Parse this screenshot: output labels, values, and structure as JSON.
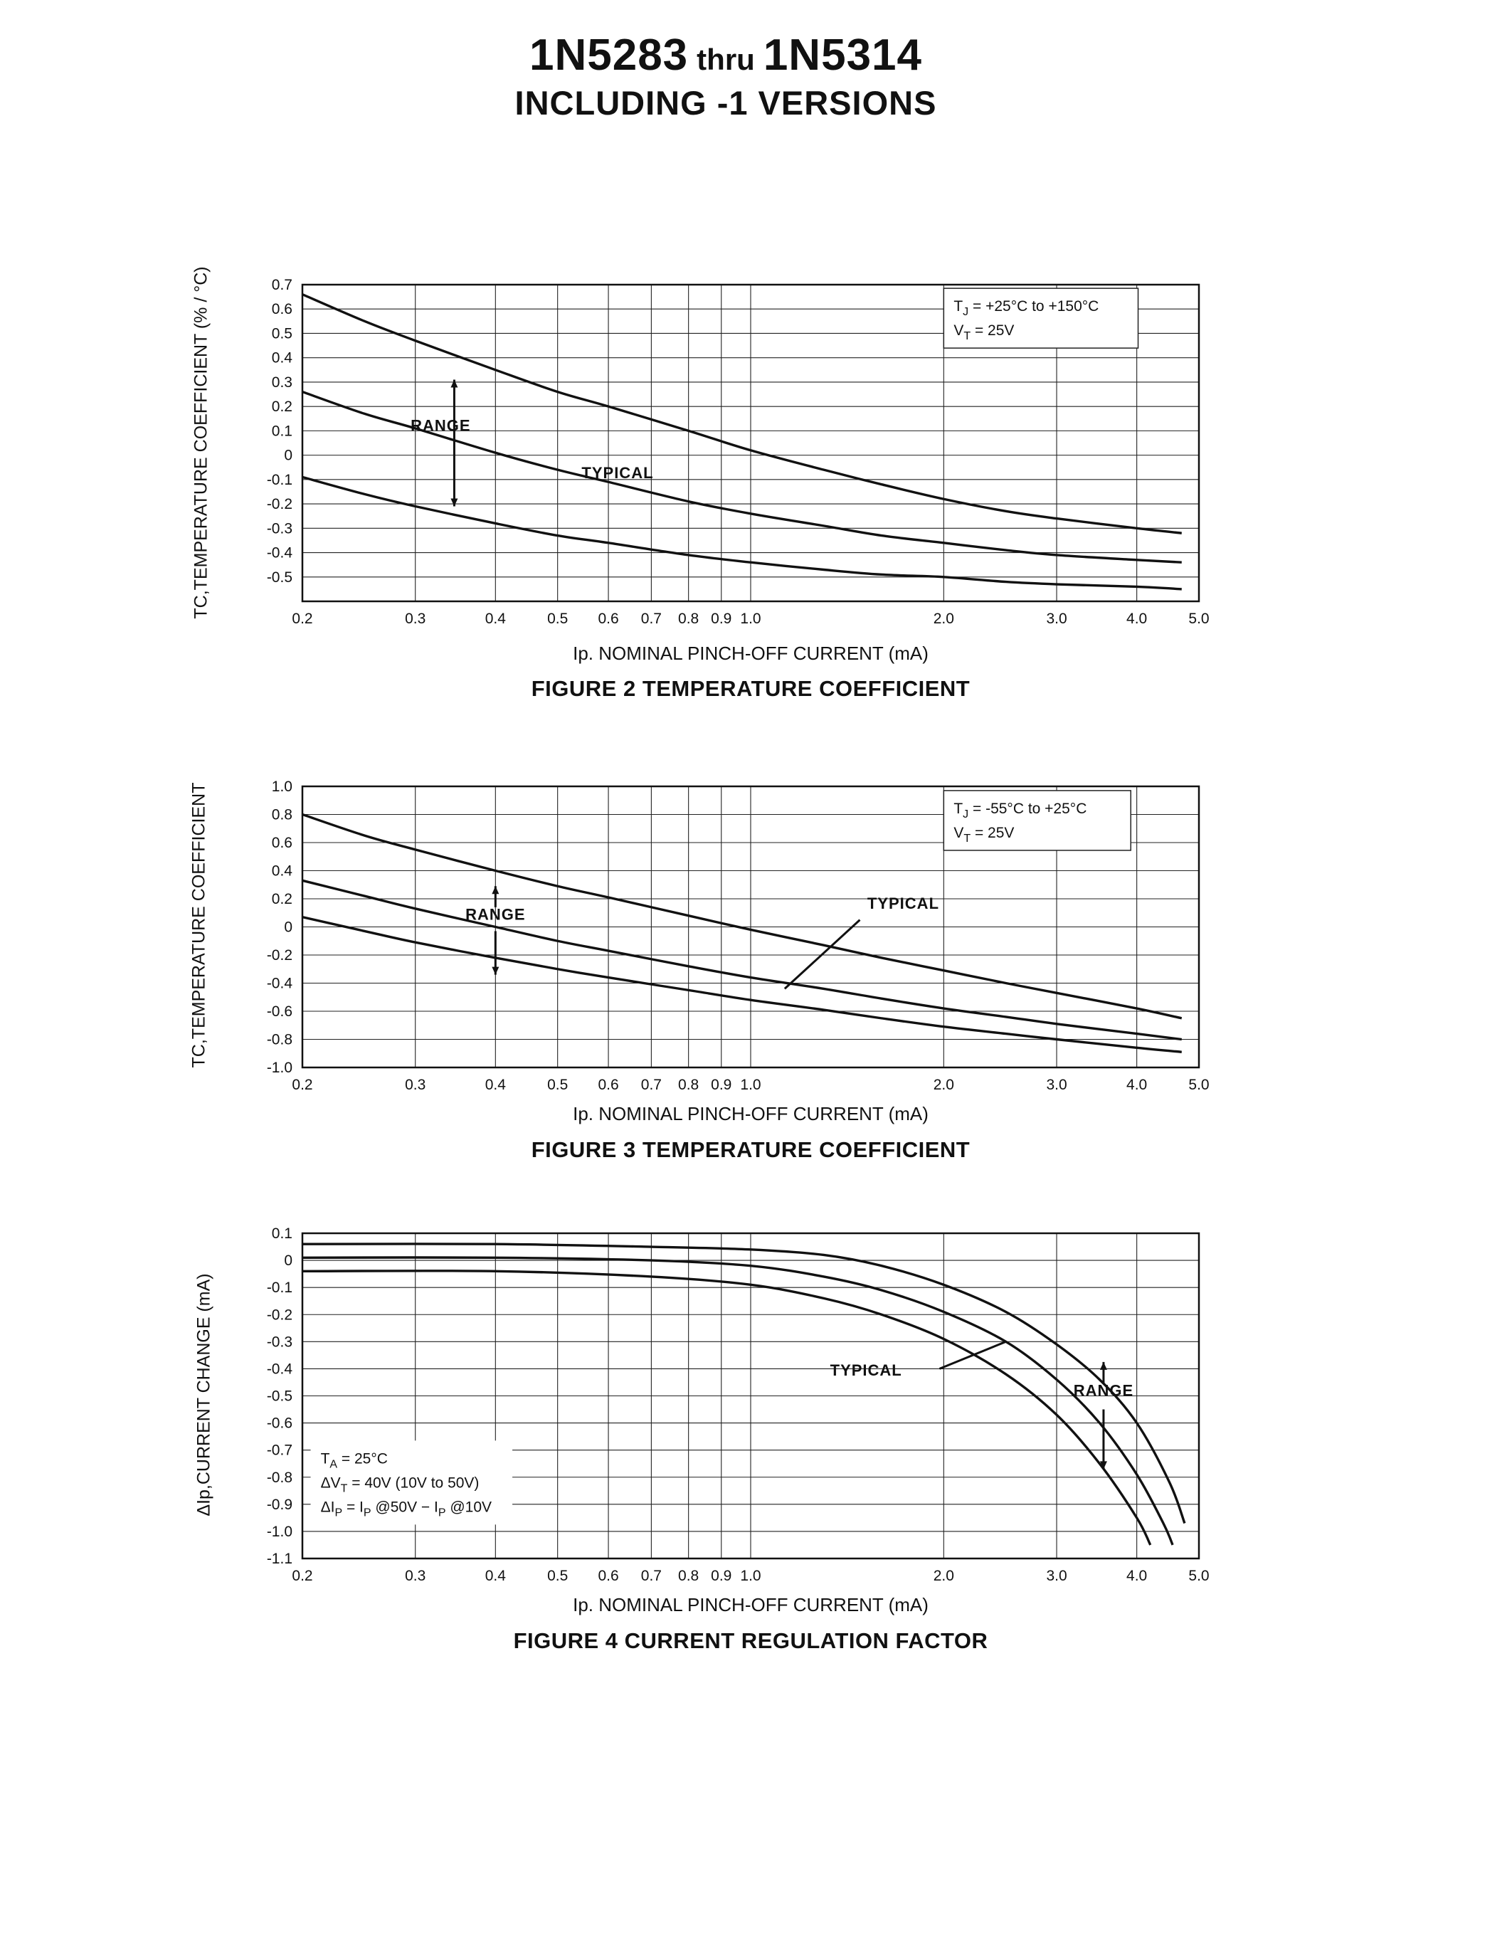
{
  "page": {
    "title_part1": "1N5283",
    "title_thru": "thru",
    "title_part2": "1N5314",
    "subtitle": "INCLUDING -1 VERSIONS"
  },
  "chart_data": [
    {
      "type": "line",
      "figure_caption": "FIGURE 2 TEMPERATURE COEFFICIENT",
      "xlabel": "Ip. NOMINAL PINCH-OFF CURRENT (mA)",
      "ylabel": "TC,TEMPERATURE COEFFICIENT (% / °C)",
      "xscale": "log",
      "xlim": [
        0.2,
        5.0
      ],
      "ylim": [
        -0.6,
        0.7
      ],
      "xticks": [
        0.2,
        0.3,
        0.4,
        0.5,
        0.6,
        0.7,
        0.8,
        0.9,
        1.0,
        2.0,
        3.0,
        4.0,
        5.0
      ],
      "xtick_labels": [
        "0.2",
        "0.3",
        "0.4",
        "0.5",
        "0.6",
        "0.7",
        "0.8",
        "0.9",
        "1.0",
        "2.0",
        "3.0",
        "4.0",
        "5.0"
      ],
      "yticks": [
        0.7,
        0.6,
        0.5,
        0.4,
        0.3,
        0.2,
        0.1,
        0,
        -0.1,
        -0.2,
        -0.3,
        -0.4,
        -0.5
      ],
      "ytick_labels": [
        "0.7",
        "0.6",
        "0.5",
        "0.4",
        "0.3",
        "0.2",
        "0.1",
        "0",
        "-0.1",
        "-0.2",
        "-0.3",
        "-0.4",
        "-0.5"
      ],
      "conditions": {
        "lines": [
          "T~J~   =   +25°C to +150°C",
          "V~T~   =   25V"
        ],
        "x": 2.0,
        "y": 0.685,
        "box": true
      },
      "series": [
        {
          "name": "range-upper",
          "points": [
            [
              0.2,
              0.66
            ],
            [
              0.25,
              0.55
            ],
            [
              0.3,
              0.47
            ],
            [
              0.4,
              0.35
            ],
            [
              0.5,
              0.26
            ],
            [
              0.6,
              0.2
            ],
            [
              0.8,
              0.1
            ],
            [
              1.0,
              0.02
            ],
            [
              1.3,
              -0.06
            ],
            [
              1.6,
              -0.12
            ],
            [
              2.0,
              -0.18
            ],
            [
              2.5,
              -0.23
            ],
            [
              3.0,
              -0.26
            ],
            [
              4.0,
              -0.3
            ],
            [
              4.7,
              -0.32
            ]
          ]
        },
        {
          "name": "typical",
          "points": [
            [
              0.2,
              0.26
            ],
            [
              0.25,
              0.17
            ],
            [
              0.3,
              0.11
            ],
            [
              0.4,
              0.01
            ],
            [
              0.5,
              -0.06
            ],
            [
              0.6,
              -0.11
            ],
            [
              0.8,
              -0.19
            ],
            [
              1.0,
              -0.24
            ],
            [
              1.3,
              -0.29
            ],
            [
              1.6,
              -0.33
            ],
            [
              2.0,
              -0.36
            ],
            [
              2.5,
              -0.39
            ],
            [
              3.0,
              -0.41
            ],
            [
              4.0,
              -0.43
            ],
            [
              4.7,
              -0.44
            ]
          ]
        },
        {
          "name": "range-lower",
          "points": [
            [
              0.2,
              -0.09
            ],
            [
              0.25,
              -0.16
            ],
            [
              0.3,
              -0.21
            ],
            [
              0.4,
              -0.28
            ],
            [
              0.5,
              -0.33
            ],
            [
              0.6,
              -0.36
            ],
            [
              0.8,
              -0.41
            ],
            [
              1.0,
              -0.44
            ],
            [
              1.3,
              -0.47
            ],
            [
              1.6,
              -0.49
            ],
            [
              2.0,
              -0.5
            ],
            [
              2.5,
              -0.52
            ],
            [
              3.0,
              -0.53
            ],
            [
              4.0,
              -0.54
            ],
            [
              4.7,
              -0.55
            ]
          ]
        }
      ],
      "annotations": [
        {
          "type": "text",
          "label": "RANGE",
          "x": 0.295,
          "y": 0.1,
          "anchor": "start"
        },
        {
          "type": "arrow",
          "x1": 0.345,
          "y1": 0.31,
          "x2": 0.345,
          "y2": -0.21,
          "heads": "both"
        },
        {
          "type": "text",
          "label": "TYPICAL",
          "x": 0.545,
          "y": -0.095,
          "anchor": "start"
        }
      ]
    },
    {
      "type": "line",
      "figure_caption": "FIGURE 3 TEMPERATURE COEFFICIENT",
      "xlabel": "Ip. NOMINAL PINCH-OFF CURRENT (mA)",
      "ylabel": "TC,TEMPERATURE COEFFICIENT",
      "xscale": "log",
      "xlim": [
        0.2,
        5.0
      ],
      "ylim": [
        -1.0,
        1.0
      ],
      "xticks": [
        0.2,
        0.3,
        0.4,
        0.5,
        0.6,
        0.7,
        0.8,
        0.9,
        1.0,
        2.0,
        3.0,
        4.0,
        5.0
      ],
      "xtick_labels": [
        "0.2",
        "0.3",
        "0.4",
        "0.5",
        "0.6",
        "0.7",
        "0.8",
        "0.9",
        "1.0",
        "2.0",
        "3.0",
        "4.0",
        "5.0"
      ],
      "yticks": [
        1.0,
        0.8,
        0.6,
        0.4,
        0.2,
        0,
        -0.2,
        -0.4,
        -0.6,
        -0.8,
        -1.0
      ],
      "ytick_labels": [
        "1.0",
        "0.8",
        "0.6",
        "0.4",
        "0.2",
        "0",
        "-0.2",
        "-0.4",
        "-0.6",
        "-0.8",
        "-1.0"
      ],
      "conditions": {
        "lines": [
          "T~J~   =   -55°C to +25°C",
          "V~T~   =   25V"
        ],
        "x": 2.0,
        "y": 0.97,
        "box": true
      },
      "series": [
        {
          "name": "range-upper",
          "points": [
            [
              0.2,
              0.8
            ],
            [
              0.25,
              0.65
            ],
            [
              0.3,
              0.55
            ],
            [
              0.4,
              0.4
            ],
            [
              0.5,
              0.29
            ],
            [
              0.6,
              0.21
            ],
            [
              0.8,
              0.08
            ],
            [
              1.0,
              -0.02
            ],
            [
              1.3,
              -0.13
            ],
            [
              1.6,
              -0.22
            ],
            [
              2.0,
              -0.31
            ],
            [
              2.5,
              -0.4
            ],
            [
              3.0,
              -0.47
            ],
            [
              4.0,
              -0.58
            ],
            [
              4.7,
              -0.65
            ]
          ]
        },
        {
          "name": "typical",
          "points": [
            [
              0.2,
              0.33
            ],
            [
              0.25,
              0.22
            ],
            [
              0.3,
              0.13
            ],
            [
              0.4,
              0.0
            ],
            [
              0.5,
              -0.1
            ],
            [
              0.6,
              -0.17
            ],
            [
              0.8,
              -0.28
            ],
            [
              1.0,
              -0.36
            ],
            [
              1.3,
              -0.44
            ],
            [
              1.6,
              -0.51
            ],
            [
              2.0,
              -0.58
            ],
            [
              2.5,
              -0.64
            ],
            [
              3.0,
              -0.69
            ],
            [
              4.0,
              -0.76
            ],
            [
              4.7,
              -0.8
            ]
          ]
        },
        {
          "name": "range-lower",
          "points": [
            [
              0.2,
              0.07
            ],
            [
              0.25,
              -0.03
            ],
            [
              0.3,
              -0.11
            ],
            [
              0.4,
              -0.22
            ],
            [
              0.5,
              -0.3
            ],
            [
              0.6,
              -0.36
            ],
            [
              0.8,
              -0.45
            ],
            [
              1.0,
              -0.52
            ],
            [
              1.3,
              -0.59
            ],
            [
              1.6,
              -0.65
            ],
            [
              2.0,
              -0.71
            ],
            [
              2.5,
              -0.76
            ],
            [
              3.0,
              -0.8
            ],
            [
              4.0,
              -0.86
            ],
            [
              4.7,
              -0.89
            ]
          ]
        }
      ],
      "annotations": [
        {
          "type": "text",
          "label": "RANGE",
          "x": 0.4,
          "y": 0.05,
          "anchor": "middle"
        },
        {
          "type": "arrow",
          "x1": 0.4,
          "y1": 0.14,
          "x2": 0.4,
          "y2": 0.29,
          "heads": "end"
        },
        {
          "type": "arrow",
          "x1": 0.4,
          "y1": -0.03,
          "x2": 0.4,
          "y2": -0.34,
          "heads": "end"
        },
        {
          "type": "text",
          "label": "TYPICAL",
          "x": 1.52,
          "y": 0.13,
          "anchor": "start"
        },
        {
          "type": "arrow",
          "x1": 1.48,
          "y1": 0.05,
          "x2": 1.13,
          "y2": -0.44,
          "heads": "none"
        }
      ]
    },
    {
      "type": "line",
      "figure_caption": "FIGURE 4 CURRENT REGULATION FACTOR",
      "xlabel": "Ip. NOMINAL PINCH-OFF CURRENT (mA)",
      "ylabel": "ΔIp,CURRENT CHANGE (mA)",
      "xscale": "log",
      "xlim": [
        0.2,
        5.0
      ],
      "ylim": [
        -1.1,
        0.1
      ],
      "xticks": [
        0.2,
        0.3,
        0.4,
        0.5,
        0.6,
        0.7,
        0.8,
        0.9,
        1.0,
        2.0,
        3.0,
        4.0,
        5.0
      ],
      "xtick_labels": [
        "0.2",
        "0.3",
        "0.4",
        "0.5",
        "0.6",
        "0.7",
        "0.8",
        "0.9",
        "1.0",
        "2.0",
        "3.0",
        "4.0",
        "5.0"
      ],
      "yticks": [
        0.1,
        0,
        -0.1,
        -0.2,
        -0.3,
        -0.4,
        -0.5,
        -0.6,
        -0.7,
        -0.8,
        -0.9,
        -1.0,
        -1.1
      ],
      "ytick_labels": [
        "0.1",
        "0",
        "-0.1",
        "-0.2",
        "-0.3",
        "-0.4",
        "-0.5",
        "-0.6",
        "-0.7",
        "-0.8",
        "-0.9",
        "-1.0",
        "-1.1"
      ],
      "conditions": {
        "lines": [
          "T~A~   =   25°C",
          "ΔV~T~  =  40V (10V to 50V)",
          "ΔI~P~  =  I~P~ @50V − I~P~ @10V"
        ],
        "x": 0.206,
        "y": -0.665,
        "box": false
      },
      "series": [
        {
          "name": "range-upper",
          "points": [
            [
              0.2,
              0.06
            ],
            [
              0.4,
              0.06
            ],
            [
              0.7,
              0.05
            ],
            [
              1.0,
              0.04
            ],
            [
              1.3,
              0.02
            ],
            [
              1.6,
              -0.02
            ],
            [
              2.0,
              -0.09
            ],
            [
              2.5,
              -0.19
            ],
            [
              3.0,
              -0.31
            ],
            [
              3.5,
              -0.44
            ],
            [
              4.0,
              -0.6
            ],
            [
              4.5,
              -0.82
            ],
            [
              4.75,
              -0.97
            ]
          ]
        },
        {
          "name": "typical",
          "points": [
            [
              0.2,
              0.01
            ],
            [
              0.4,
              0.01
            ],
            [
              0.7,
              0.0
            ],
            [
              1.0,
              -0.02
            ],
            [
              1.3,
              -0.06
            ],
            [
              1.6,
              -0.11
            ],
            [
              2.0,
              -0.19
            ],
            [
              2.5,
              -0.3
            ],
            [
              3.0,
              -0.44
            ],
            [
              3.5,
              -0.6
            ],
            [
              4.0,
              -0.79
            ],
            [
              4.4,
              -0.97
            ],
            [
              4.55,
              -1.05
            ]
          ]
        },
        {
          "name": "range-lower",
          "points": [
            [
              0.2,
              -0.04
            ],
            [
              0.4,
              -0.04
            ],
            [
              0.7,
              -0.06
            ],
            [
              1.0,
              -0.09
            ],
            [
              1.3,
              -0.14
            ],
            [
              1.6,
              -0.2
            ],
            [
              2.0,
              -0.29
            ],
            [
              2.5,
              -0.42
            ],
            [
              3.0,
              -0.57
            ],
            [
              3.5,
              -0.75
            ],
            [
              4.0,
              -0.95
            ],
            [
              4.2,
              -1.05
            ]
          ]
        }
      ],
      "annotations": [
        {
          "type": "text",
          "label": "TYPICAL",
          "x": 1.33,
          "y": -0.425,
          "anchor": "start"
        },
        {
          "type": "arrow",
          "x1": 1.97,
          "y1": -0.4,
          "x2": 2.5,
          "y2": -0.3,
          "heads": "none"
        },
        {
          "type": "text",
          "label": "RANGE",
          "x": 3.55,
          "y": -0.5,
          "anchor": "middle"
        },
        {
          "type": "arrow",
          "x1": 3.55,
          "y1": -0.455,
          "x2": 3.55,
          "y2": -0.375,
          "heads": "end"
        },
        {
          "type": "arrow",
          "x1": 3.55,
          "y1": -0.55,
          "x2": 3.55,
          "y2": -0.77,
          "heads": "end"
        }
      ]
    }
  ]
}
